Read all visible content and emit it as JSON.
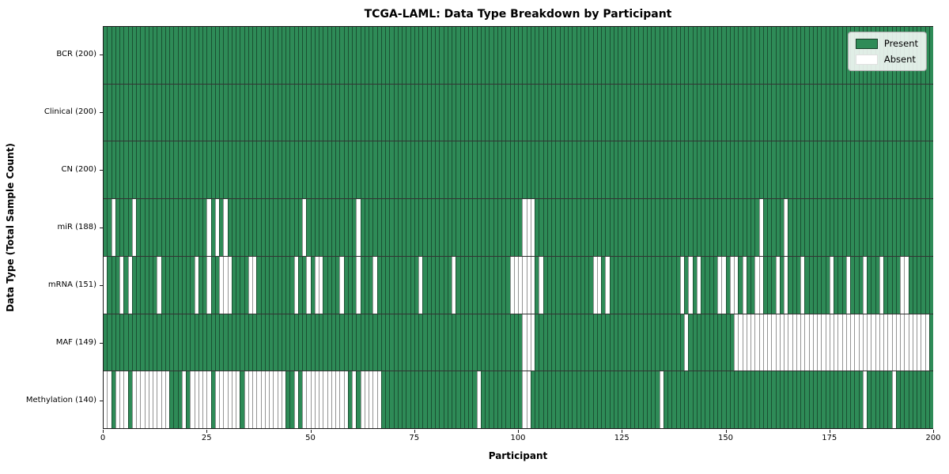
{
  "chart_data": {
    "type": "heatmap",
    "title": "TCGA-LAML: Data Type Breakdown by Participant",
    "xlabel": "Participant",
    "ylabel": "Data Type (Total Sample Count)",
    "n_participants": 200,
    "x_axis_range": [
      0,
      200
    ],
    "x_ticks": [
      0,
      25,
      50,
      75,
      100,
      125,
      150,
      175,
      200
    ],
    "grid": false,
    "legend_position": "upper right",
    "legend_labels": [
      "Present",
      "Absent"
    ],
    "colors": {
      "present": "#2e8b57",
      "absent": "#ffffff",
      "cell_edge": "rgba(0,0,0,0.42)",
      "row_divider": "#000000"
    },
    "rows": [
      {
        "label": "BCR (200)",
        "name": "BCR",
        "present_count": 200,
        "absent": []
      },
      {
        "label": "Clinical (200)",
        "name": "Clinical",
        "present_count": 200,
        "absent": []
      },
      {
        "label": "CN (200)",
        "name": "CN",
        "present_count": 200,
        "absent": []
      },
      {
        "label": "miR (188)",
        "name": "miR",
        "present_count": 188,
        "absent": [
          2,
          7,
          25,
          27,
          29,
          48,
          61,
          101,
          102,
          103,
          158,
          164
        ]
      },
      {
        "label": "mRNA (151)",
        "name": "mRNA",
        "present_count": 151,
        "absent": [
          0,
          4,
          6,
          13,
          22,
          25,
          28,
          29,
          30,
          35,
          36,
          46,
          49,
          51,
          52,
          57,
          61,
          65,
          76,
          84,
          98,
          99,
          100,
          101,
          102,
          103,
          105,
          118,
          119,
          121,
          139,
          141,
          143,
          148,
          149,
          151,
          152,
          154,
          157,
          158,
          162,
          164,
          168,
          175,
          179,
          183,
          187,
          192,
          193
        ]
      },
      {
        "label": "MAF (149)",
        "name": "MAF",
        "present_count": 149,
        "absent": [
          101,
          102,
          103,
          140,
          152,
          153,
          154,
          155,
          156,
          157,
          158,
          159,
          160,
          161,
          162,
          163,
          164,
          165,
          166,
          167,
          168,
          169,
          170,
          171,
          172,
          173,
          174,
          175,
          176,
          177,
          178,
          179,
          180,
          181,
          182,
          183,
          184,
          185,
          186,
          187,
          188,
          189,
          190,
          191,
          192,
          193,
          194,
          195,
          196,
          197,
          198
        ]
      },
      {
        "label": "Methylation (140)",
        "name": "Methylation",
        "present_count": 140,
        "absent": [
          0,
          1,
          3,
          4,
          5,
          7,
          8,
          9,
          10,
          11,
          12,
          13,
          14,
          15,
          19,
          21,
          22,
          23,
          24,
          25,
          27,
          28,
          29,
          30,
          31,
          32,
          34,
          35,
          36,
          37,
          38,
          39,
          40,
          41,
          42,
          43,
          46,
          48,
          49,
          50,
          51,
          52,
          53,
          54,
          55,
          56,
          57,
          58,
          60,
          62,
          63,
          64,
          65,
          66,
          90,
          101,
          102,
          134,
          183,
          190
        ]
      }
    ]
  }
}
